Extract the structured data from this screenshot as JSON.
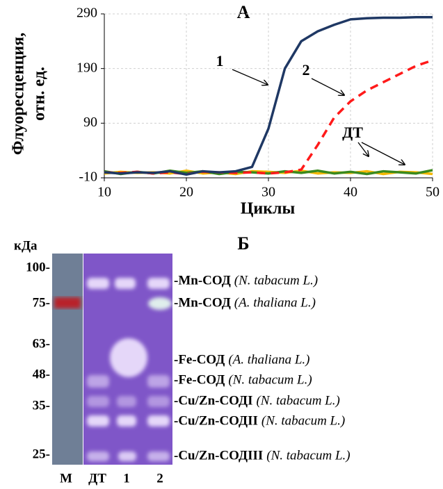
{
  "chart_data": {
    "type": "line",
    "title": "А",
    "xlabel": "Циклы",
    "ylabel": [
      "Флуоресценция,",
      "отн. ед."
    ],
    "x": [
      10,
      12,
      14,
      16,
      18,
      20,
      22,
      24,
      26,
      28,
      30,
      32,
      34,
      36,
      38,
      40,
      42,
      44,
      46,
      48,
      50
    ],
    "xlim": [
      10,
      50
    ],
    "xticks": [
      10,
      20,
      30,
      40,
      50
    ],
    "ylim": [
      -10,
      290
    ],
    "yticks": [
      -10,
      90,
      190,
      290
    ],
    "grid": true,
    "series": [
      {
        "name": "1",
        "color": "#1f3864",
        "dash": false,
        "values": [
          0,
          -2,
          0,
          -1,
          2,
          -4,
          2,
          0,
          2,
          10,
          80,
          190,
          240,
          258,
          270,
          280,
          282,
          283,
          283,
          284,
          284
        ]
      },
      {
        "name": "2",
        "color": "#ff1a1a",
        "dash": true,
        "values": [
          0,
          -1,
          1,
          -2,
          0,
          -3,
          1,
          0,
          -1,
          0,
          -2,
          0,
          5,
          50,
          100,
          130,
          150,
          165,
          180,
          195,
          205
        ]
      },
      {
        "name": "ДТ",
        "color": "#3a8a1e",
        "dash": false,
        "values": [
          2,
          -3,
          1,
          -2,
          3,
          -1,
          2,
          -3,
          1,
          0,
          -2,
          2,
          -1,
          3,
          -2,
          1,
          -3,
          2,
          0,
          -2,
          4
        ]
      },
      {
        "color": "#f5b800",
        "dash": false,
        "values": [
          -2,
          1,
          -1,
          0,
          -2,
          3,
          -2,
          0,
          -3,
          2,
          1,
          -1,
          3,
          -2,
          0,
          -1,
          2,
          -3,
          1,
          0,
          -3
        ]
      }
    ]
  },
  "gel": {
    "title": "Б",
    "unit": "кДа",
    "markers": [
      "100-",
      "75-",
      "63-",
      "48-",
      "35-",
      "25-"
    ],
    "lanes": [
      "М",
      "ДТ",
      "1",
      "2"
    ],
    "bands": [
      {
        "name": "-Mn-СОД",
        "species": "(N. tabacum L.)"
      },
      {
        "name": "-Mn-СОД",
        "species": "(A. thaliana L.)"
      },
      {
        "name": "-Fe-СОД",
        "species": "(A. thaliana L.)"
      },
      {
        "name": "-Fe-СОД",
        "species": "(N. tabacum L.)"
      },
      {
        "name": "-Cu/Zn-СОДI",
        "species": "(N. tabacum L.)"
      },
      {
        "name": "-Cu/Zn-СОДII",
        "species": "(N. tabacum L.)"
      },
      {
        "name": "-Cu/Zn-СОДIII",
        "species": "(N. tabacum L.)"
      }
    ]
  }
}
